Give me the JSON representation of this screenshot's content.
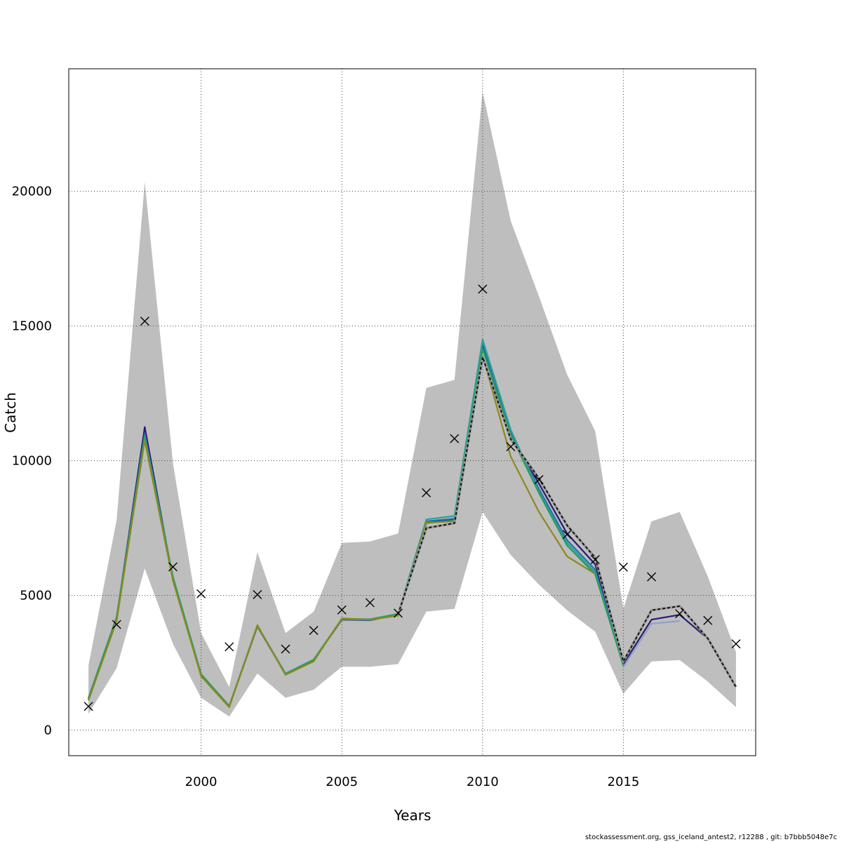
{
  "chart_data": {
    "type": "line",
    "title": "",
    "xlabel": "Years",
    "ylabel": "Catch",
    "xlim": [
      1995.3,
      2019.7
    ],
    "ylim": [
      -950,
      24550
    ],
    "x_ticks": [
      2000,
      2005,
      2010,
      2015
    ],
    "y_ticks": [
      0,
      5000,
      10000,
      15000,
      20000
    ],
    "grid": true,
    "legend": "none",
    "band": {
      "color": "#bebebe",
      "x": [
        1996,
        1997,
        1998,
        1999,
        2000,
        2001,
        2002,
        2003,
        2004,
        2005,
        2006,
        2007,
        2008,
        2009,
        2010,
        2011,
        2012,
        2013,
        2014,
        2015,
        2016,
        2017,
        2018,
        2019
      ],
      "upper": [
        2400,
        7800,
        20350,
        9900,
        3600,
        1600,
        6600,
        3600,
        4400,
        6950,
        7000,
        7300,
        12700,
        13000,
        23700,
        18900,
        16100,
        13200,
        11100,
        4500,
        7750,
        8100,
        5700,
        2900
      ],
      "lower": [
        600,
        2300,
        6000,
        3200,
        1200,
        500,
        2100,
        1200,
        1500,
        2350,
        2350,
        2450,
        4400,
        4500,
        8100,
        6500,
        5400,
        4450,
        3650,
        1350,
        2550,
        2600,
        1800,
        850
      ]
    },
    "series": [
      {
        "color": "#2b1a72",
        "width": 2.2,
        "dashed": false,
        "x": [
          1996,
          1997,
          1998,
          1999,
          2000,
          2001,
          2002,
          2003,
          2004,
          2005,
          2006,
          2007,
          2008,
          2009,
          2010,
          2011,
          2012,
          2013,
          2014,
          2015,
          2016,
          2017,
          2018
        ],
        "y": [
          1150,
          4150,
          11250,
          5600,
          2050,
          880,
          3850,
          2080,
          2600,
          4100,
          4080,
          4280,
          7720,
          7800,
          14200,
          10900,
          9150,
          7300,
          6150,
          2450,
          4100,
          4280,
          3400
        ]
      },
      {
        "color": "#1e73b4",
        "width": 2.2,
        "dashed": false,
        "x": [
          1996,
          1997,
          1998,
          1999,
          2000,
          2001,
          2002,
          2003,
          2004,
          2005,
          2006,
          2007,
          2008,
          2009,
          2010,
          2011,
          2012,
          2013,
          2014,
          2015
        ],
        "y": [
          1180,
          4180,
          11000,
          5650,
          2070,
          890,
          3870,
          2090,
          2610,
          4110,
          4090,
          4290,
          7750,
          7850,
          14350,
          11050,
          8950,
          7050,
          5950,
          2420
        ]
      },
      {
        "color": "#2aa198",
        "width": 2.2,
        "dashed": false,
        "x": [
          1996,
          1997,
          1998,
          1999,
          2000,
          2001,
          2002,
          2003,
          2004,
          2005,
          2006,
          2007,
          2008,
          2009,
          2010,
          2011,
          2012,
          2013,
          2014,
          2015
        ],
        "y": [
          1200,
          4200,
          10900,
          5700,
          2080,
          900,
          3880,
          2100,
          2620,
          4130,
          4120,
          4320,
          7820,
          7950,
          14500,
          11150,
          8850,
          6950,
          5850,
          2380
        ]
      },
      {
        "color": "#2e9a5a",
        "width": 2.2,
        "dashed": false,
        "x": [
          1996,
          1997,
          1998,
          1999,
          2000,
          2001,
          2002,
          2003,
          2004,
          2005,
          2006,
          2007,
          2008,
          2009,
          2010,
          2011,
          2012,
          2013,
          2014,
          2015
        ],
        "y": [
          1170,
          4170,
          10850,
          5620,
          2060,
          880,
          3860,
          2080,
          2600,
          4120,
          4100,
          4300,
          7680,
          7780,
          14150,
          10950,
          8800,
          6850,
          5780,
          2400
        ]
      },
      {
        "color": "#8fa3c8",
        "width": 2.2,
        "dashed": false,
        "x": [
          2015,
          2016,
          2017
        ],
        "y": [
          2350,
          3950,
          4050
        ]
      },
      {
        "color": "#8a8a1e",
        "width": 2.2,
        "dashed": false,
        "x": [
          1996,
          1997,
          1998,
          1999,
          2000,
          2001,
          2002,
          2003,
          2004,
          2005,
          2006,
          2007,
          2008,
          2009,
          2010,
          2011,
          2012,
          2013,
          2014
        ],
        "y": [
          1100,
          4050,
          10750,
          5550,
          2000,
          850,
          3900,
          2050,
          2550,
          4150,
          4100,
          4250,
          7700,
          7750,
          13900,
          10150,
          8100,
          6450,
          5800
        ]
      },
      {
        "color": "#333333",
        "width": 2,
        "dashed": true,
        "x": [
          2007,
          2008,
          2009,
          2010,
          2011,
          2012,
          2013,
          2014,
          2015,
          2016,
          2017,
          2018,
          2019
        ],
        "y": [
          4300,
          7500,
          7680,
          13850,
          10800,
          9350,
          7600,
          6400,
          2550,
          4450,
          4600,
          3400,
          1600
        ]
      }
    ],
    "observations": {
      "marker": "x",
      "x": [
        1996,
        1997,
        1998,
        1999,
        2000,
        2001,
        2002,
        2003,
        2004,
        2005,
        2006,
        2007,
        2008,
        2009,
        2010,
        2011,
        2012,
        2013,
        2014,
        2015,
        2016,
        2017,
        2018,
        2019
      ],
      "y": [
        880,
        3920,
        15180,
        6060,
        5060,
        3090,
        5030,
        3010,
        3700,
        4460,
        4730,
        4340,
        8810,
        10820,
        16370,
        10520,
        9300,
        7260,
        6330,
        6050,
        5690,
        4320,
        4070,
        3200
      ]
    }
  },
  "footer": {
    "text": "stockassessment.org, gss_iceland_antest2, r12288 , git: b7bbb5048e7c"
  }
}
